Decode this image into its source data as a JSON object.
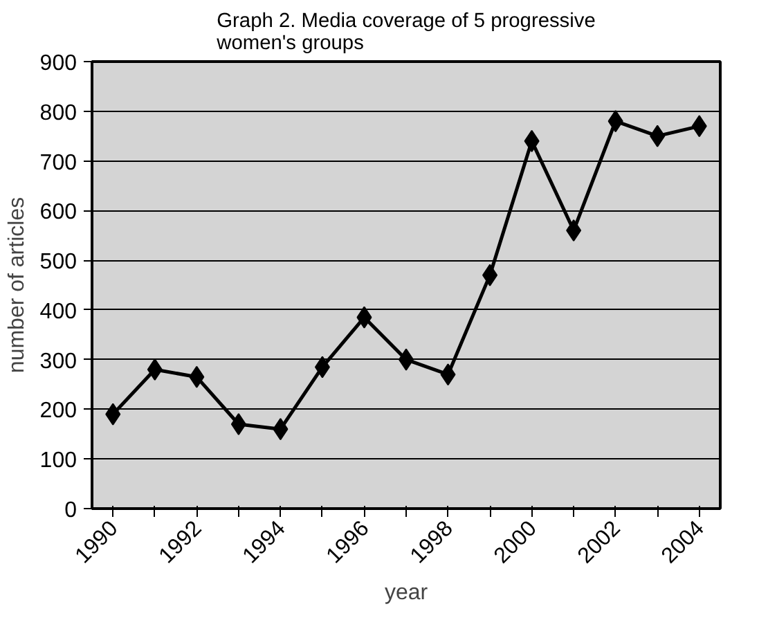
{
  "chart_data": {
    "type": "line",
    "title": "Graph 2. Media coverage of 5 progressive\nwomen's groups",
    "xlabel": "year",
    "ylabel": "number of articles",
    "categories": [
      "1990",
      null,
      "1992",
      null,
      "1994",
      null,
      "1996",
      null,
      "1998",
      null,
      "2000",
      null,
      "2002",
      null,
      "2004"
    ],
    "series": [
      {
        "color": "#000000",
        "values": [
          190,
          280,
          265,
          170,
          160,
          285,
          385,
          300,
          270,
          470,
          740,
          560,
          780,
          750,
          770
        ]
      }
    ],
    "ylim": [
      0,
      900
    ],
    "yticks": [
      0,
      100,
      200,
      300,
      400,
      500,
      600,
      700,
      800,
      900
    ],
    "grid": "y",
    "marker": "diamond",
    "line_style": "solid"
  }
}
